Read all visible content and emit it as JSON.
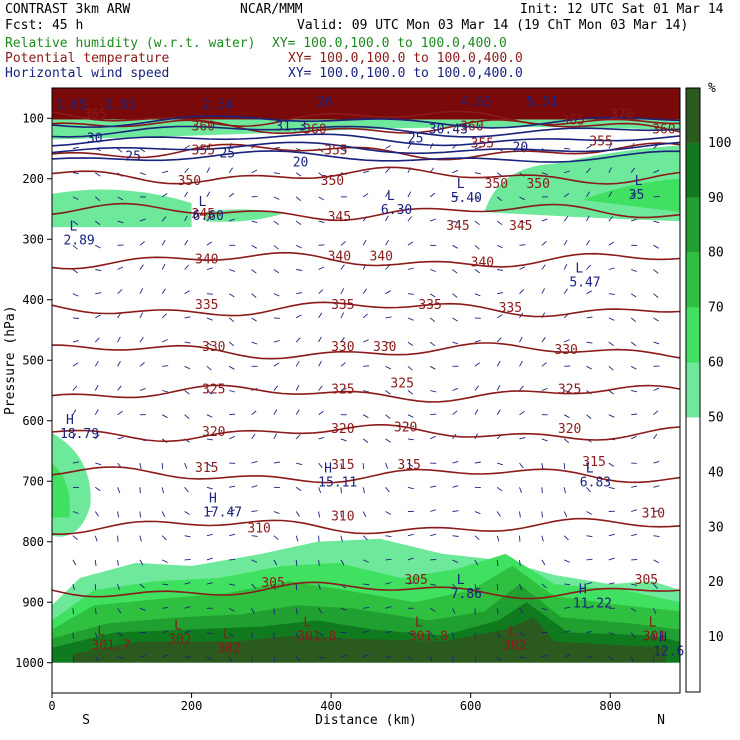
{
  "header": {
    "model": "CONTRAST  3km ARW",
    "org": "NCAR/MMM",
    "init": "Init: 12 UTC Sat 01 Mar 14",
    "fcst": "Fcst:   45 h",
    "valid": "Valid: 09 UTC Mon 03 Mar 14 (19 ChT Mon 03 Mar 14)"
  },
  "fields": [
    {
      "name": "Relative humidity (w.r.t. water)",
      "xy": "XY= 100.0,100.0 to 100.0,400.0",
      "color": "#1d8a1d"
    },
    {
      "name": "Potential temperature",
      "xy": "XY= 100.0,100.0 to 100.0,400.0",
      "color": "#8b1a1a"
    },
    {
      "name": "Horizontal wind speed",
      "xy": "XY= 100.0,100.0 to 100.0,400.0",
      "color": "#1a237e"
    }
  ],
  "chart_data": {
    "type": "heatmap",
    "xlabel": "Distance (km)",
    "ylabel": "Pressure (hPa)",
    "x_ticks": [
      0,
      200,
      400,
      600,
      800
    ],
    "xlim": [
      0,
      900
    ],
    "y_ticks": [
      100,
      200,
      300,
      400,
      500,
      600,
      700,
      800,
      900,
      1000
    ],
    "ylim": [
      1050,
      50
    ],
    "x_end_labels": {
      "left": "S",
      "right": "N"
    },
    "colorbar": {
      "unit": "%",
      "ticks": [
        10,
        20,
        30,
        40,
        50,
        60,
        70,
        80,
        90,
        100
      ],
      "levels": [
        50,
        60,
        70,
        80,
        90,
        100,
        110
      ],
      "colors": [
        "#6ee89a",
        "#40e060",
        "#30c040",
        "#20a030",
        "#0f7a1e",
        "#2b5a1e",
        "#f08080"
      ]
    },
    "theta_contours": [
      {
        "value": 305,
        "pressure": 880
      },
      {
        "value": 310,
        "pressure": 775
      },
      {
        "value": 315,
        "pressure": 690
      },
      {
        "value": 320,
        "pressure": 620
      },
      {
        "value": 325,
        "pressure": 555
      },
      {
        "value": 330,
        "pressure": 485
      },
      {
        "value": 335,
        "pressure": 415
      },
      {
        "value": 340,
        "pressure": 335
      },
      {
        "value": 345,
        "pressure": 255
      },
      {
        "value": 350,
        "pressure": 195
      },
      {
        "value": 355,
        "pressure": 155
      },
      {
        "value": 360,
        "pressure": 115
      },
      {
        "value": 365,
        "pressure": 100
      }
    ],
    "theta_labels": [
      {
        "text": "305",
        "x": 300,
        "p": 875
      },
      {
        "text": "305",
        "x": 505,
        "p": 870
      },
      {
        "text": "305",
        "x": 835,
        "p": 870
      },
      {
        "text": "310",
        "x": 280,
        "p": 785
      },
      {
        "text": "310",
        "x": 400,
        "p": 765
      },
      {
        "text": "310",
        "x": 845,
        "p": 760
      },
      {
        "text": "315",
        "x": 205,
        "p": 685
      },
      {
        "text": "315",
        "x": 400,
        "p": 680
      },
      {
        "text": "315",
        "x": 495,
        "p": 680
      },
      {
        "text": "315",
        "x": 760,
        "p": 675
      },
      {
        "text": "320",
        "x": 215,
        "p": 625
      },
      {
        "text": "320",
        "x": 400,
        "p": 620
      },
      {
        "text": "320",
        "x": 490,
        "p": 618
      },
      {
        "text": "320",
        "x": 725,
        "p": 620
      },
      {
        "text": "325",
        "x": 215,
        "p": 555
      },
      {
        "text": "325",
        "x": 400,
        "p": 555
      },
      {
        "text": "325",
        "x": 485,
        "p": 545
      },
      {
        "text": "325",
        "x": 725,
        "p": 555
      },
      {
        "text": "330",
        "x": 215,
        "p": 485
      },
      {
        "text": "330",
        "x": 400,
        "p": 485
      },
      {
        "text": "330",
        "x": 460,
        "p": 485
      },
      {
        "text": "330",
        "x": 720,
        "p": 490
      },
      {
        "text": "335",
        "x": 205,
        "p": 415
      },
      {
        "text": "335",
        "x": 400,
        "p": 415
      },
      {
        "text": "335",
        "x": 525,
        "p": 415
      },
      {
        "text": "335",
        "x": 640,
        "p": 420
      },
      {
        "text": "340",
        "x": 205,
        "p": 340
      },
      {
        "text": "340",
        "x": 395,
        "p": 335
      },
      {
        "text": "340",
        "x": 455,
        "p": 335
      },
      {
        "text": "340",
        "x": 600,
        "p": 345
      },
      {
        "text": "345",
        "x": 200,
        "p": 265
      },
      {
        "text": "345",
        "x": 395,
        "p": 270
      },
      {
        "text": "345",
        "x": 565,
        "p": 285
      },
      {
        "text": "345",
        "x": 655,
        "p": 285
      },
      {
        "text": "350",
        "x": 180,
        "p": 210
      },
      {
        "text": "350",
        "x": 385,
        "p": 210
      },
      {
        "text": "350",
        "x": 620,
        "p": 215
      },
      {
        "text": "350",
        "x": 680,
        "p": 215
      },
      {
        "text": "355",
        "x": 200,
        "p": 160
      },
      {
        "text": "355",
        "x": 390,
        "p": 160
      },
      {
        "text": "355",
        "x": 600,
        "p": 148
      },
      {
        "text": "355",
        "x": 770,
        "p": 145
      },
      {
        "text": "360",
        "x": 200,
        "p": 120
      },
      {
        "text": "360",
        "x": 360,
        "p": 125
      },
      {
        "text": "360",
        "x": 585,
        "p": 120
      },
      {
        "text": "360",
        "x": 860,
        "p": 125
      },
      {
        "text": "365",
        "x": 45,
        "p": 100
      },
      {
        "text": "365",
        "x": 730,
        "p": 110
      },
      {
        "text": "370",
        "x": 800,
        "p": 100
      }
    ],
    "wind_speed_labels": [
      {
        "text": "30",
        "x": 50,
        "p": 140
      },
      {
        "text": "25",
        "x": 105,
        "p": 170
      },
      {
        "text": "25",
        "x": 240,
        "p": 165
      },
      {
        "text": "20",
        "x": 345,
        "p": 180
      },
      {
        "text": "25",
        "x": 510,
        "p": 140
      },
      {
        "text": "20",
        "x": 660,
        "p": 155
      },
      {
        "text": "26",
        "x": 380,
        "p": 80
      },
      {
        "text": "1.65",
        "x": 5,
        "p": 85
      },
      {
        "text": "2.83",
        "x": 75,
        "p": 85
      },
      {
        "text": "2.54",
        "x": 215,
        "p": 85
      },
      {
        "text": "4.65",
        "x": 585,
        "p": 80
      },
      {
        "text": "5.51",
        "x": 680,
        "p": 80
      },
      {
        "text": "31.3",
        "x": 320,
        "p": 120
      },
      {
        "text": "30.43",
        "x": 540,
        "p": 125
      }
    ],
    "extrema": [
      {
        "kind": "L",
        "value": "2.89",
        "x": 25,
        "p": 305
      },
      {
        "kind": "L",
        "value": "6.60",
        "x": 210,
        "p": 265
      },
      {
        "kind": "L",
        "value": "6.30",
        "x": 480,
        "p": 255
      },
      {
        "kind": "L",
        "value": "5.40",
        "x": 580,
        "p": 235
      },
      {
        "kind": "L",
        "value": "5.47",
        "x": 750,
        "p": 375
      },
      {
        "kind": "L",
        "value": "35",
        "x": 835,
        "p": 230
      },
      {
        "kind": "H",
        "value": "18.79",
        "x": 20,
        "p": 625
      },
      {
        "kind": "H",
        "value": "15.11",
        "x": 390,
        "p": 705
      },
      {
        "kind": "H",
        "value": "17.47",
        "x": 225,
        "p": 755
      },
      {
        "kind": "L",
        "value": "6.83",
        "x": 765,
        "p": 705
      },
      {
        "kind": "L",
        "value": "7.86",
        "x": 580,
        "p": 890
      },
      {
        "kind": "H",
        "value": "11.22",
        "x": 755,
        "p": 905
      },
      {
        "kind": "L",
        "value": "301.7",
        "x": 65,
        "p": 975
      },
      {
        "kind": "L",
        "value": "302",
        "x": 175,
        "p": 965
      },
      {
        "kind": "L",
        "value": "302",
        "x": 245,
        "p": 980
      },
      {
        "kind": "L",
        "value": "301.8",
        "x": 360,
        "p": 960
      },
      {
        "kind": "L",
        "value": "301.8",
        "x": 520,
        "p": 960
      },
      {
        "kind": "L",
        "value": "302",
        "x": 655,
        "p": 975
      },
      {
        "kind": "L",
        "value": "301",
        "x": 855,
        "p": 960
      },
      {
        "kind": "H",
        "value": "12.6",
        "x": 870,
        "p": 985
      }
    ]
  }
}
